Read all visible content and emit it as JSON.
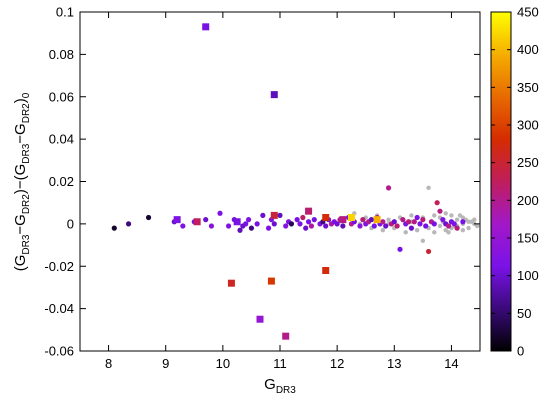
{
  "chart_data": {
    "type": "scatter",
    "xlabel": "G",
    "xlabel_sub": "DR3",
    "ylabel_parts": [
      {
        "t": "(G"
      },
      {
        "t": "DR3",
        "sub": true
      },
      {
        "t": "−G"
      },
      {
        "t": "DR2",
        "sub": true
      },
      {
        "t": ")−(G"
      },
      {
        "t": "DR3",
        "sub": true
      },
      {
        "t": "−G"
      },
      {
        "t": "DR2",
        "sub": true
      },
      {
        "t": ")"
      },
      {
        "t": "0",
        "sub": true
      }
    ],
    "xlim": [
      7.5,
      14.5
    ],
    "ylim": [
      -0.06,
      0.1
    ],
    "x_ticks": [
      8,
      9,
      10,
      11,
      12,
      13,
      14
    ],
    "y_ticks": [
      -0.06,
      -0.04,
      -0.02,
      0,
      0.02,
      0.04,
      0.06,
      0.08,
      0.1
    ],
    "y_tick_labels": [
      "-0.06",
      "-0.04",
      "-0.02",
      "0",
      "0.02",
      "0.04",
      "0.06",
      "0.08",
      "0.1"
    ],
    "colorbar": {
      "range": [
        0,
        450
      ],
      "ticks": [
        0,
        50,
        100,
        150,
        200,
        250,
        300,
        350,
        400,
        450
      ],
      "palette": [
        "#000000",
        "#3a0a7a",
        "#7a12e8",
        "#a218c8",
        "#c01e5c",
        "#d52c00",
        "#e86a00",
        "#f5ae00",
        "#ffff00"
      ]
    },
    "grey_points": [
      [
        12.3,
        0.005
      ],
      [
        12.5,
        0.003
      ],
      [
        12.7,
        0.004
      ],
      [
        12.9,
        0.002
      ],
      [
        13.1,
        0.003
      ],
      [
        13.3,
        0.004
      ],
      [
        13.5,
        0.003
      ],
      [
        13.6,
        0.017
      ],
      [
        13.7,
        0.004
      ],
      [
        13.8,
        0.003
      ],
      [
        13.9,
        0.005
      ],
      [
        14.0,
        0.004
      ],
      [
        14.1,
        0.002
      ],
      [
        14.2,
        0.003
      ],
      [
        14.3,
        0.001
      ],
      [
        14.4,
        0.002
      ],
      [
        12.6,
        -0.002
      ],
      [
        12.8,
        -0.003
      ],
      [
        13.0,
        -0.002
      ],
      [
        13.2,
        -0.004
      ],
      [
        13.4,
        -0.003
      ],
      [
        13.5,
        -0.008
      ],
      [
        13.6,
        -0.002
      ],
      [
        13.7,
        -0.004
      ],
      [
        13.8,
        -0.001
      ],
      [
        13.9,
        -0.003
      ],
      [
        14.0,
        -0.002
      ],
      [
        14.1,
        -0.001
      ],
      [
        14.2,
        -0.003
      ],
      [
        14.3,
        -0.002
      ],
      [
        14.4,
        0.0
      ],
      [
        12.4,
        0.0
      ],
      [
        12.9,
        0.0
      ],
      [
        13.3,
        0.001
      ],
      [
        13.7,
        0.0
      ],
      [
        14.0,
        0.001
      ],
      [
        14.2,
        0.0
      ],
      [
        14.35,
        0.001
      ],
      [
        13.95,
        -0.004
      ],
      [
        14.15,
        0.004
      ],
      [
        14.25,
        0.002
      ],
      [
        14.45,
        -0.001
      ],
      [
        13.85,
        0.001
      ],
      [
        14.05,
        -0.001
      ]
    ],
    "circle_points": [
      [
        8.1,
        -0.002,
        20
      ],
      [
        8.35,
        0.0,
        60
      ],
      [
        8.7,
        0.003,
        25
      ],
      [
        9.15,
        0.001,
        95
      ],
      [
        9.3,
        -0.001,
        120
      ],
      [
        9.5,
        0.001,
        110
      ],
      [
        9.7,
        0.002,
        100
      ],
      [
        9.8,
        -0.001,
        130
      ],
      [
        9.95,
        0.005,
        115
      ],
      [
        10.1,
        -0.001,
        120
      ],
      [
        10.2,
        0.002,
        105
      ],
      [
        10.3,
        -0.003,
        90
      ],
      [
        10.35,
        -0.001,
        100
      ],
      [
        10.4,
        0.0,
        110
      ],
      [
        10.45,
        0.002,
        120
      ],
      [
        10.5,
        -0.002,
        60
      ],
      [
        10.6,
        0.0,
        110
      ],
      [
        10.7,
        0.004,
        100
      ],
      [
        10.8,
        -0.002,
        115
      ],
      [
        10.85,
        0.002,
        120
      ],
      [
        10.9,
        0.0,
        100
      ],
      [
        11.0,
        0.004,
        90
      ],
      [
        11.1,
        -0.001,
        130
      ],
      [
        11.15,
        0.001,
        115
      ],
      [
        11.2,
        0.0,
        40
      ],
      [
        11.3,
        0.002,
        110
      ],
      [
        11.35,
        0.0,
        120
      ],
      [
        11.4,
        0.003,
        220
      ],
      [
        11.45,
        -0.002,
        100
      ],
      [
        11.5,
        0.001,
        115
      ],
      [
        11.55,
        -0.001,
        190
      ],
      [
        11.6,
        0.002,
        110
      ],
      [
        11.7,
        0.0,
        120
      ],
      [
        11.75,
        0.001,
        60
      ],
      [
        11.8,
        -0.001,
        100
      ],
      [
        11.85,
        0.002,
        110
      ],
      [
        11.9,
        0.0,
        190
      ],
      [
        11.95,
        0.001,
        120
      ],
      [
        12.0,
        0.0,
        105
      ],
      [
        12.05,
        0.002,
        200
      ],
      [
        12.1,
        -0.001,
        90
      ],
      [
        12.2,
        0.003,
        115
      ],
      [
        12.25,
        0.0,
        200
      ],
      [
        12.3,
        0.001,
        110
      ],
      [
        12.4,
        -0.001,
        130
      ],
      [
        12.45,
        0.002,
        210
      ],
      [
        12.5,
        0.0,
        120
      ],
      [
        12.55,
        0.001,
        200
      ],
      [
        12.6,
        0.002,
        90
      ],
      [
        12.65,
        -0.001,
        110
      ],
      [
        12.7,
        0.003,
        205
      ],
      [
        12.75,
        0.0,
        120
      ],
      [
        12.8,
        0.001,
        195
      ],
      [
        12.85,
        -0.001,
        100
      ],
      [
        12.9,
        0.017,
        200
      ],
      [
        12.95,
        0.0,
        210
      ],
      [
        13.0,
        0.001,
        100
      ],
      [
        13.05,
        -0.001,
        215
      ],
      [
        13.1,
        -0.012,
        110
      ],
      [
        13.15,
        0.002,
        205
      ],
      [
        13.2,
        0.0,
        120
      ],
      [
        13.25,
        0.001,
        210
      ],
      [
        13.3,
        -0.002,
        100
      ],
      [
        13.35,
        0.001,
        205
      ],
      [
        13.4,
        0.003,
        115
      ],
      [
        13.45,
        0.0,
        120
      ],
      [
        13.5,
        0.002,
        210
      ],
      [
        13.55,
        -0.001,
        110
      ],
      [
        13.6,
        -0.013,
        250
      ],
      [
        13.65,
        0.001,
        200
      ],
      [
        13.7,
        0.0,
        110
      ],
      [
        13.75,
        0.01,
        230
      ],
      [
        13.8,
        0.006,
        205
      ],
      [
        13.85,
        0.002,
        120
      ],
      [
        13.9,
        0.0,
        100
      ],
      [
        13.95,
        -0.001,
        200
      ],
      [
        14.0,
        0.001,
        110
      ],
      [
        14.05,
        0.0,
        120
      ],
      [
        14.1,
        -0.002,
        210
      ],
      [
        14.2,
        0.001,
        115
      ]
    ],
    "square_points": [
      [
        9.7,
        0.093,
        110
      ],
      [
        10.9,
        0.061,
        90
      ],
      [
        11.1,
        -0.053,
        200
      ],
      [
        10.65,
        -0.045,
        150
      ],
      [
        10.15,
        -0.028,
        260
      ],
      [
        10.85,
        -0.027,
        290
      ],
      [
        11.8,
        -0.022,
        275
      ],
      [
        9.2,
        0.002,
        120
      ],
      [
        9.55,
        0.001,
        225
      ],
      [
        10.25,
        0.001,
        110
      ],
      [
        10.9,
        0.004,
        245
      ],
      [
        11.5,
        0.006,
        215
      ],
      [
        11.8,
        0.003,
        280
      ],
      [
        12.25,
        0.003,
        420
      ],
      [
        12.1,
        0.002,
        205
      ],
      [
        12.7,
        0.002,
        395
      ]
    ]
  }
}
